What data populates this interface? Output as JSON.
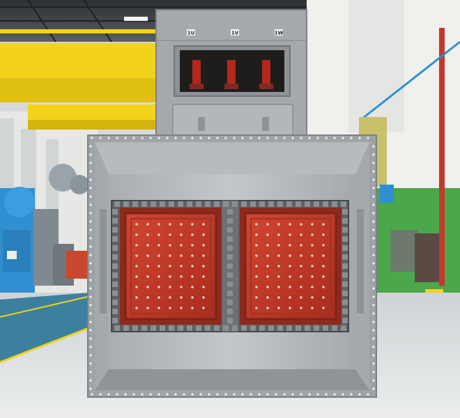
{
  "photo": {
    "subject": "transformer",
    "terminal_labels": [
      "1U",
      "1V",
      "1W"
    ]
  },
  "colors": {
    "crane_yellow": "#f2d21a",
    "tank_grey": "#9ea3a8",
    "core_red": "#c0392b",
    "floor": "#dfe2e3",
    "wall_green": "#4aa84a",
    "machine_blue": "#2f8fd0"
  }
}
